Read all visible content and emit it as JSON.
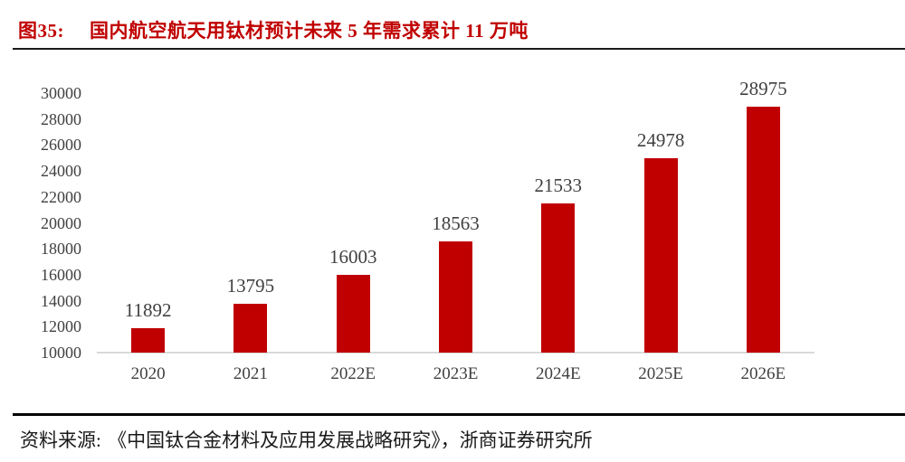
{
  "figure": {
    "number_label": "图35:",
    "title": "国内航空航天用钛材预计未来 5 年需求累计 11 万吨"
  },
  "source": {
    "label": "资料来源:",
    "text": "《中国钛合金材料及应用发展战略研究》，浙商证券研究所"
  },
  "colors": {
    "title_red": "#C00000",
    "bar_red": "#C00000",
    "chart_text": "#404040",
    "axis_baseline": "#D9D9D9",
    "divider_dark": "#1A1A1A",
    "source_divider": "#000000"
  },
  "chart_data": {
    "type": "bar",
    "title": "国内航空航天用钛材预计未来 5 年需求累计 11 万吨",
    "categories": [
      "2020",
      "2021",
      "2022E",
      "2023E",
      "2024E",
      "2025E",
      "2026E"
    ],
    "values": [
      11892,
      13795,
      16003,
      18563,
      21533,
      24978,
      28975
    ],
    "xlabel": "",
    "ylabel": "",
    "ylim": [
      10000,
      30000
    ],
    "ytick_step": 2000,
    "yticks": [
      10000,
      12000,
      14000,
      16000,
      18000,
      20000,
      22000,
      24000,
      26000,
      28000,
      30000
    ],
    "grid": false,
    "legend": false,
    "data_labels": true
  }
}
